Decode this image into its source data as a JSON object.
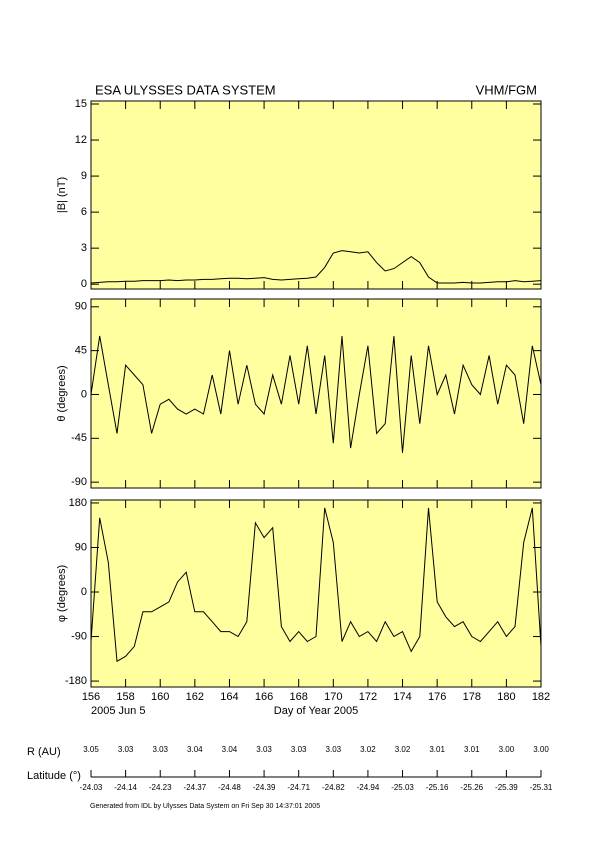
{
  "header": {
    "title": "ESA ULYSSES DATA SYSTEM",
    "instrument": "VHM/FGM"
  },
  "chart_data": [
    {
      "type": "line",
      "ylabel": "|B| (nT)",
      "color": "#000000",
      "x": [
        156,
        156.5,
        157,
        157.5,
        158,
        158.5,
        159,
        159.5,
        160,
        160.5,
        161,
        161.5,
        162,
        162.5,
        163,
        163.5,
        164,
        164.5,
        165,
        165.5,
        166,
        166.5,
        167,
        167.5,
        168,
        168.5,
        169,
        169.5,
        170,
        170.5,
        171,
        171.5,
        172,
        172.5,
        173,
        173.5,
        174,
        174.5,
        175,
        175.5,
        176,
        176.5,
        177,
        177.5,
        178,
        178.5,
        179,
        179.5,
        180,
        180.5,
        181,
        181.5,
        182
      ],
      "values": [
        0.1,
        0.15,
        0.2,
        0.2,
        0.25,
        0.25,
        0.3,
        0.3,
        0.3,
        0.35,
        0.3,
        0.35,
        0.35,
        0.4,
        0.4,
        0.45,
        0.5,
        0.5,
        0.45,
        0.5,
        0.55,
        0.4,
        0.35,
        0.4,
        0.45,
        0.5,
        0.6,
        1.4,
        2.6,
        2.8,
        2.7,
        2.6,
        2.7,
        1.8,
        1.1,
        1.3,
        1.8,
        2.3,
        1.8,
        0.6,
        0.1,
        0.1,
        0.1,
        0.15,
        0.1,
        0.1,
        0.15,
        0.2,
        0.2,
        0.3,
        0.2,
        0.25,
        0.3
      ],
      "xlim": [
        156,
        182
      ],
      "xticks": [
        156,
        158,
        160,
        162,
        164,
        166,
        168,
        170,
        172,
        174,
        176,
        178,
        180,
        182
      ],
      "ylim": [
        -0.4,
        15.25
      ],
      "yticks": [
        0,
        3,
        6,
        9,
        12,
        15
      ]
    },
    {
      "type": "line",
      "ylabel": "θ (degrees)",
      "color": "#000000",
      "x": [
        156,
        156.5,
        157,
        157.5,
        158,
        158.5,
        159,
        159.5,
        160,
        160.5,
        161,
        161.5,
        162,
        162.5,
        163,
        163.5,
        164,
        164.5,
        165,
        165.5,
        166,
        166.5,
        167,
        167.5,
        168,
        168.5,
        169,
        169.5,
        170,
        170.5,
        171,
        171.5,
        172,
        172.5,
        173,
        173.5,
        174,
        174.5,
        175,
        175.5,
        176,
        176.5,
        177,
        177.5,
        178,
        178.5,
        179,
        179.5,
        180,
        180.5,
        181,
        181.5,
        182
      ],
      "values": [
        0,
        60,
        10,
        -40,
        30,
        20,
        10,
        -40,
        -10,
        -5,
        -15,
        -20,
        -15,
        -20,
        20,
        -20,
        45,
        -10,
        30,
        -10,
        -20,
        20,
        -10,
        40,
        -10,
        50,
        -20,
        40,
        -50,
        60,
        -55,
        0,
        50,
        -40,
        -30,
        60,
        -60,
        40,
        -30,
        50,
        0,
        20,
        -20,
        30,
        10,
        0,
        40,
        -10,
        30,
        20,
        -30,
        50,
        10
      ],
      "xlim": [
        156,
        182
      ],
      "xticks": [
        156,
        158,
        160,
        162,
        164,
        166,
        168,
        170,
        172,
        174,
        176,
        178,
        180,
        182
      ],
      "ylim": [
        -96,
        98
      ],
      "yticks": [
        -90,
        -45,
        0,
        45,
        90
      ]
    },
    {
      "type": "line",
      "ylabel": "φ (degrees)",
      "color": "#000000",
      "xlabel": "Day of Year 2005",
      "date_label": "2005 Jun  5",
      "x": [
        156,
        156.5,
        157,
        157.5,
        158,
        158.5,
        159,
        159.5,
        160,
        160.5,
        161,
        161.5,
        162,
        162.5,
        163,
        163.5,
        164,
        164.5,
        165,
        165.5,
        166,
        166.5,
        167,
        167.5,
        168,
        168.5,
        169,
        169.5,
        170,
        170.5,
        171,
        171.5,
        172,
        172.5,
        173,
        173.5,
        174,
        174.5,
        175,
        175.5,
        176,
        176.5,
        177,
        177.5,
        178,
        178.5,
        179,
        179.5,
        180,
        180.5,
        181,
        181.5,
        182
      ],
      "values": [
        -100,
        150,
        60,
        -140,
        -130,
        -110,
        -40,
        -40,
        -30,
        -20,
        20,
        40,
        -40,
        -40,
        -60,
        -80,
        -80,
        -90,
        -60,
        140,
        110,
        130,
        -70,
        -100,
        -80,
        -100,
        -90,
        170,
        100,
        -100,
        -60,
        -90,
        -80,
        -100,
        -60,
        -90,
        -80,
        -120,
        -90,
        170,
        -20,
        -50,
        -70,
        -60,
        -90,
        -100,
        -80,
        -60,
        -90,
        -70,
        100,
        170,
        -110
      ],
      "xlim": [
        156,
        182
      ],
      "xticks": [
        156,
        158,
        160,
        162,
        164,
        166,
        168,
        170,
        172,
        174,
        176,
        178,
        180,
        182
      ],
      "ylim": [
        -192,
        186
      ],
      "yticks": [
        -180,
        -90,
        0,
        90,
        180
      ]
    }
  ],
  "ephemeris": {
    "r_label": "R (AU)",
    "r_values": [
      "3.05",
      "3.03",
      "3.03",
      "3.04",
      "3.04",
      "3.03",
      "3.03",
      "3.03",
      "3.02",
      "3.02",
      "3.01",
      "3.01",
      "3.00",
      "3.00"
    ],
    "lat_label": "Latitude (°)",
    "lat_values": [
      "-24.03",
      "-24.14",
      "-24.23",
      "-24.37",
      "-24.48",
      "-24.39",
      "-24.71",
      "-24.82",
      "-24.94",
      "-25.03",
      "-25.16",
      "-25.26",
      "-25.39",
      "-25.31"
    ]
  },
  "footer": "Generated from IDL by Ulysses Data System on Fri Sep 30 14:37:01 2005"
}
